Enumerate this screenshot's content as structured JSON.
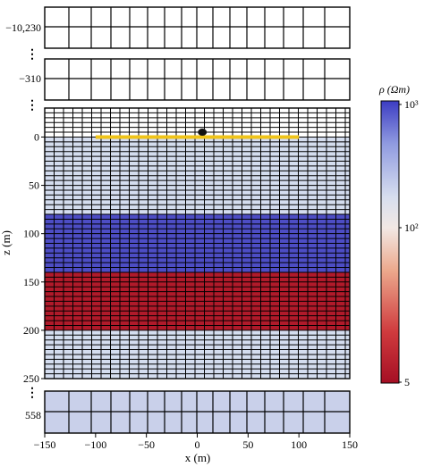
{
  "figure": {
    "x_axis_label": "x (m)",
    "y_axis_label": "z (m)",
    "x_ticks": [
      "−150",
      "−100",
      "−50",
      "0",
      "50",
      "100",
      "150"
    ],
    "x_tick_values": [
      -150,
      -100,
      -50,
      0,
      50,
      100,
      150
    ],
    "z_ticks_main": [
      "0",
      "50",
      "100",
      "150",
      "200",
      "250"
    ],
    "z_tick_values": [
      0,
      50,
      100,
      150,
      200,
      250
    ],
    "z_tick_deep_top": "−10,230",
    "z_tick_air": "−310",
    "z_tick_deep_bottom": "558",
    "ellipsis_glyph": "⋮"
  },
  "colorbar": {
    "title": "ρ (Ωm)",
    "tick_top": "10³",
    "tick_mid": "10²",
    "tick_bottom": "5",
    "scale": "log",
    "range": [
      5,
      1000
    ]
  },
  "model": {
    "x_range": [
      -150,
      150
    ],
    "z_range": [
      -30,
      250
    ],
    "layers": [
      {
        "z_top": 0,
        "z_bottom": 80,
        "resistivity_ohm_m": 100,
        "color": "#d4ddef"
      },
      {
        "z_top": 80,
        "z_bottom": 140,
        "resistivity_ohm_m": 1000,
        "color": "#4d4dc4"
      },
      {
        "z_top": 140,
        "z_bottom": 200,
        "resistivity_ohm_m": 5,
        "color": "#b01a2a"
      },
      {
        "z_top": 200,
        "z_bottom": 250,
        "resistivity_ohm_m": 100,
        "color": "#d4ddef"
      }
    ],
    "bottom_panel_color": "#c9d0ea",
    "receiver_line": {
      "x_start": -100,
      "x_end": 100,
      "z": 0,
      "color": "#f0c419"
    },
    "source": {
      "x": 5,
      "z": -5,
      "color": "#111111"
    }
  }
}
